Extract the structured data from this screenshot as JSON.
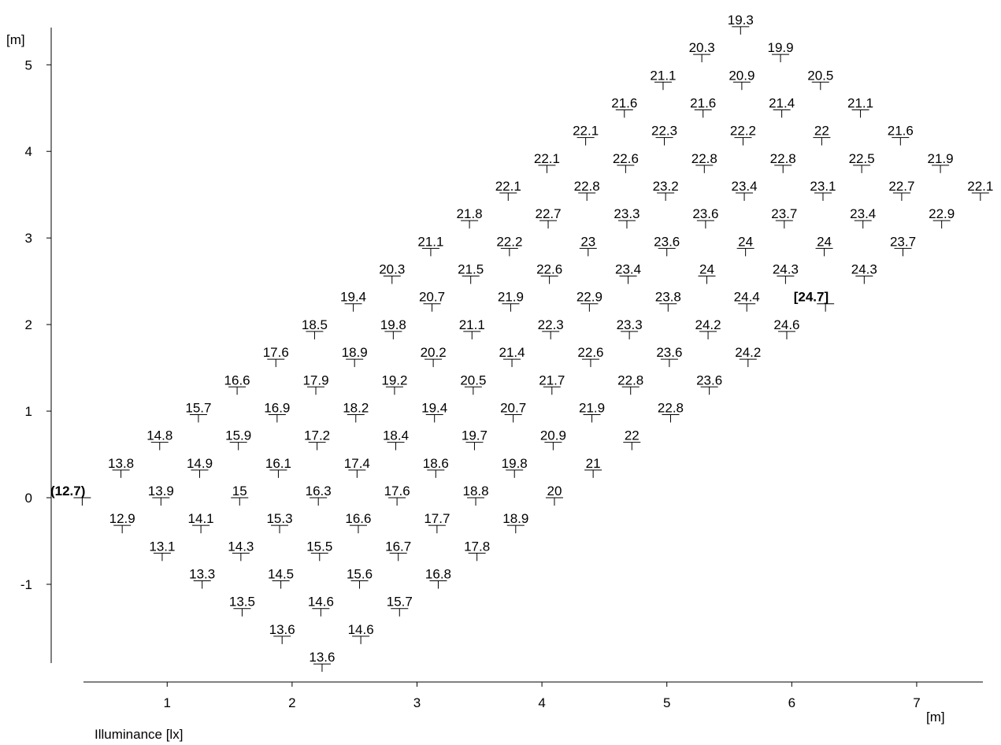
{
  "chart_data": {
    "type": "scatter",
    "x_label": "[m]",
    "y_label": "[m]",
    "caption": "Illuminance [lx]",
    "xlim": [
      0.33,
      7.53
    ],
    "xticks": [
      1,
      2,
      3,
      4,
      5,
      6,
      7
    ],
    "ylim": [
      -1.91,
      5.43
    ],
    "yticks": [
      -1,
      0,
      1,
      2,
      3,
      4,
      5
    ],
    "color": "#000000",
    "x": [
      0.32,
      0.63,
      0.94,
      1.25,
      1.56,
      1.87,
      2.18,
      2.49,
      2.8,
      3.11,
      3.42,
      3.73,
      4.04,
      4.35,
      4.66,
      4.97,
      5.28,
      5.59,
      0.64,
      0.95,
      1.26,
      1.57,
      1.88,
      2.19,
      2.5,
      2.81,
      3.12,
      3.43,
      3.74,
      4.05,
      4.36,
      4.67,
      4.98,
      5.29,
      5.6,
      5.91,
      0.96,
      1.27,
      1.58,
      1.89,
      2.2,
      2.51,
      2.82,
      3.13,
      3.44,
      3.75,
      4.06,
      4.37,
      4.68,
      4.99,
      5.3,
      5.61,
      5.92,
      6.23,
      1.28,
      1.59,
      1.9,
      2.21,
      2.52,
      2.83,
      3.14,
      3.45,
      3.76,
      4.07,
      4.38,
      4.69,
      5,
      5.31,
      5.62,
      5.93,
      6.24,
      6.55,
      1.6,
      1.91,
      2.22,
      2.53,
      2.84,
      3.15,
      3.46,
      3.77,
      4.08,
      4.39,
      4.7,
      5.01,
      5.32,
      5.63,
      5.94,
      6.25,
      6.56,
      6.87,
      1.92,
      2.23,
      2.54,
      2.85,
      3.16,
      3.47,
      3.78,
      4.09,
      4.4,
      4.71,
      5.02,
      5.33,
      5.64,
      5.95,
      6.26,
      6.57,
      6.88,
      7.19,
      2.24,
      2.55,
      2.86,
      3.17,
      3.48,
      3.79,
      4.1,
      4.41,
      4.72,
      5.03,
      5.34,
      5.65,
      5.96,
      6.27,
      6.58,
      6.89,
      7.2,
      7.51
    ],
    "y": [
      0,
      0.32,
      0.64,
      0.96,
      1.28,
      1.6,
      1.92,
      2.24,
      2.56,
      2.88,
      3.2,
      3.52,
      3.84,
      4.16,
      4.48,
      4.8,
      5.12,
      5.44,
      -0.32,
      0,
      0.32,
      0.64,
      0.96,
      1.28,
      1.6,
      1.92,
      2.24,
      2.56,
      2.88,
      3.2,
      3.52,
      3.84,
      4.16,
      4.48,
      4.8,
      5.12,
      -0.64,
      -0.32,
      0,
      0.32,
      0.64,
      0.96,
      1.28,
      1.6,
      1.92,
      2.24,
      2.56,
      2.88,
      3.2,
      3.52,
      3.84,
      4.16,
      4.48,
      4.8,
      -0.96,
      -0.64,
      -0.32,
      0,
      0.32,
      0.64,
      0.96,
      1.28,
      1.6,
      1.92,
      2.24,
      2.56,
      2.88,
      3.2,
      3.52,
      3.84,
      4.16,
      4.48,
      -1.28,
      -0.96,
      -0.64,
      -0.32,
      0,
      0.32,
      0.64,
      0.96,
      1.28,
      1.6,
      1.92,
      2.24,
      2.56,
      2.88,
      3.2,
      3.52,
      3.84,
      4.16,
      -1.6,
      -1.28,
      -0.96,
      -0.64,
      -0.32,
      0,
      0.32,
      0.64,
      0.96,
      1.28,
      1.6,
      1.92,
      2.24,
      2.56,
      2.88,
      3.2,
      3.52,
      3.84,
      -1.92,
      -1.6,
      -1.28,
      -0.96,
      -0.64,
      -0.32,
      0,
      0.32,
      0.64,
      0.96,
      1.28,
      1.6,
      1.92,
      2.24,
      2.56,
      2.88,
      3.2,
      3.52
    ],
    "values": [
      12.7,
      13.8,
      14.8,
      15.7,
      16.6,
      17.6,
      18.5,
      19.4,
      20.3,
      21.1,
      21.8,
      22.1,
      22.1,
      22.1,
      21.6,
      21.1,
      20.3,
      19.3,
      12.9,
      13.9,
      14.9,
      15.9,
      16.9,
      17.9,
      18.9,
      19.8,
      20.7,
      21.5,
      22.2,
      22.7,
      22.8,
      22.6,
      22.3,
      21.6,
      20.9,
      19.9,
      13.1,
      14.1,
      15,
      16.1,
      17.2,
      18.2,
      19.2,
      20.2,
      21.1,
      21.9,
      22.6,
      23,
      23.3,
      23.2,
      22.8,
      22.2,
      21.4,
      20.5,
      13.3,
      14.3,
      15.3,
      16.3,
      17.4,
      18.4,
      19.4,
      20.5,
      21.4,
      22.3,
      22.9,
      23.4,
      23.6,
      23.6,
      23.4,
      22.8,
      22,
      21.1,
      13.5,
      14.5,
      15.5,
      16.6,
      17.6,
      18.6,
      19.7,
      20.7,
      21.7,
      22.6,
      23.3,
      23.8,
      24,
      24,
      23.7,
      23.1,
      22.5,
      21.6,
      13.6,
      14.6,
      15.6,
      16.7,
      17.7,
      18.8,
      19.8,
      20.9,
      21.9,
      22.8,
      23.6,
      24.2,
      24.4,
      24.3,
      24,
      23.4,
      22.7,
      21.9,
      13.6,
      14.6,
      15.7,
      16.8,
      17.8,
      18.9,
      20,
      21,
      22,
      22.8,
      23.6,
      24.2,
      24.6,
      24.7,
      24.3,
      23.7,
      22.9,
      22.1
    ],
    "value_labels": [
      "(12.7)",
      "13.8",
      "14.8",
      "15.7",
      "16.6",
      "17.6",
      "18.5",
      "19.4",
      "20.3",
      "21.1",
      "21.8",
      "22.1",
      "22.1",
      "22.1",
      "21.6",
      "21.1",
      "20.3",
      "19.3",
      "12.9",
      "13.9",
      "14.9",
      "15.9",
      "16.9",
      "17.9",
      "18.9",
      "19.8",
      "20.7",
      "21.5",
      "22.2",
      "22.7",
      "22.8",
      "22.6",
      "22.3",
      "21.6",
      "20.9",
      "19.9",
      "13.1",
      "14.1",
      "15",
      "16.1",
      "17.2",
      "18.2",
      "19.2",
      "20.2",
      "21.1",
      "21.9",
      "22.6",
      "23",
      "23.3",
      "23.2",
      "22.8",
      "22.2",
      "21.4",
      "20.5",
      "13.3",
      "14.3",
      "15.3",
      "16.3",
      "17.4",
      "18.4",
      "19.4",
      "20.5",
      "21.4",
      "22.3",
      "22.9",
      "23.4",
      "23.6",
      "23.6",
      "23.4",
      "22.8",
      "22",
      "21.1",
      "13.5",
      "14.5",
      "15.5",
      "16.6",
      "17.6",
      "18.6",
      "19.7",
      "20.7",
      "21.7",
      "22.6",
      "23.3",
      "23.8",
      "24",
      "24",
      "23.7",
      "23.1",
      "22.5",
      "21.6",
      "13.6",
      "14.6",
      "15.6",
      "16.7",
      "17.7",
      "18.8",
      "19.8",
      "20.9",
      "21.9",
      "22.8",
      "23.6",
      "24.2",
      "24.4",
      "24.3",
      "24",
      "23.4",
      "22.7",
      "21.9",
      "13.6",
      "14.6",
      "15.7",
      "16.8",
      "17.8",
      "18.9",
      "20",
      "21",
      "22",
      "22.8",
      "23.6",
      "24.2",
      "24.6",
      "[24.7]",
      "24.3",
      "23.7",
      "22.9",
      "22.1"
    ]
  }
}
